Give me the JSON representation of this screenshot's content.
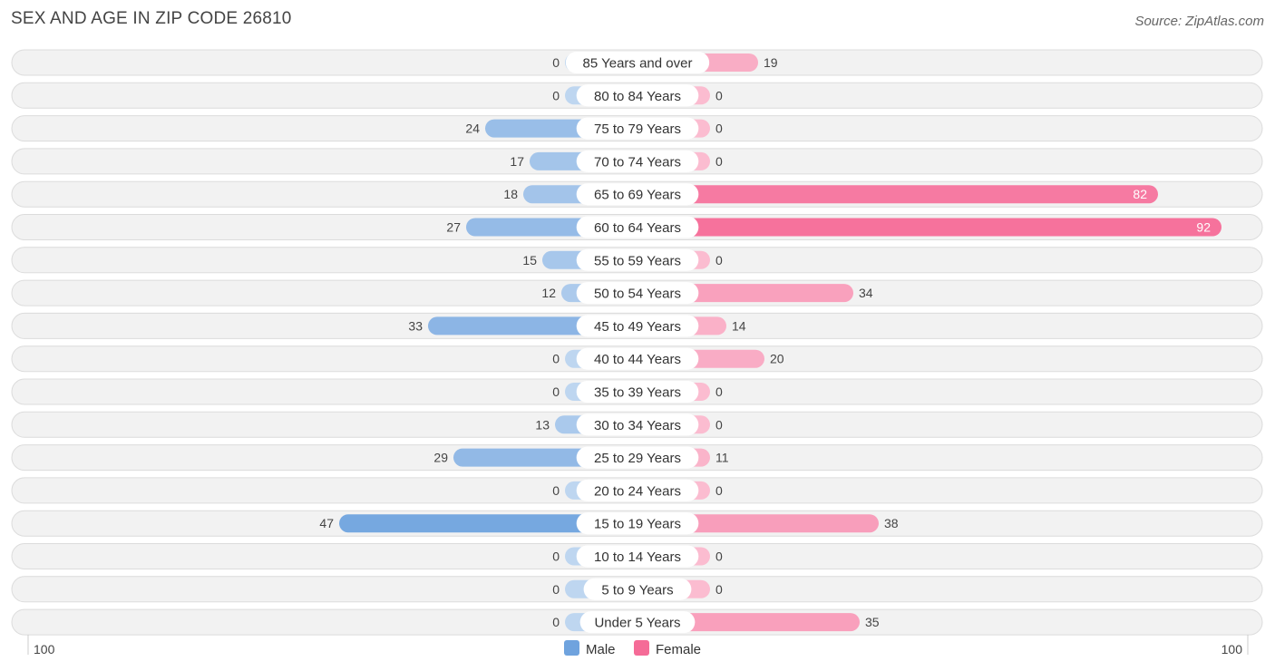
{
  "title": "SEX AND AGE IN ZIP CODE 26810",
  "source": "Source: ZipAtlas.com",
  "chart_data": {
    "type": "bar",
    "orientation": "horizontal-diverging",
    "categories": [
      "85 Years and over",
      "80 to 84 Years",
      "75 to 79 Years",
      "70 to 74 Years",
      "65 to 69 Years",
      "60 to 64 Years",
      "55 to 59 Years",
      "50 to 54 Years",
      "45 to 49 Years",
      "40 to 44 Years",
      "35 to 39 Years",
      "30 to 34 Years",
      "25 to 29 Years",
      "20 to 24 Years",
      "15 to 19 Years",
      "10 to 14 Years",
      "5 to 9 Years",
      "Under 5 Years"
    ],
    "series": [
      {
        "name": "Male",
        "color": "#6fa3de",
        "values": [
          0,
          0,
          24,
          17,
          18,
          27,
          15,
          12,
          33,
          0,
          0,
          13,
          29,
          0,
          47,
          0,
          0,
          0
        ]
      },
      {
        "name": "Female",
        "color": "#f56b97",
        "values": [
          19,
          0,
          0,
          0,
          82,
          92,
          0,
          34,
          14,
          20,
          0,
          0,
          11,
          0,
          38,
          0,
          0,
          35
        ]
      }
    ],
    "axis_left_label": "100",
    "axis_right_label": "100",
    "xlim": [
      -100,
      100
    ],
    "legend_position": "bottom-center"
  }
}
